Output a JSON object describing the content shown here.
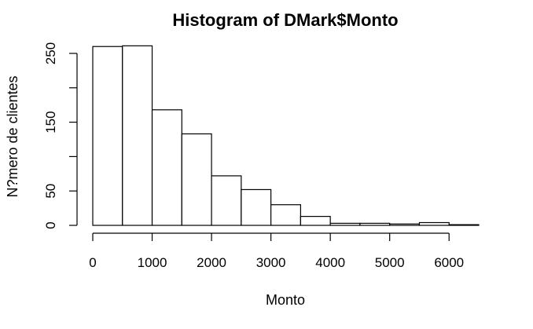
{
  "chart_data": {
    "type": "bar",
    "title": "Histogram of DMark$Monto",
    "xlabel": "Monto",
    "ylabel": "N?mero de clientes",
    "bins": [
      {
        "x0": 0,
        "x1": 500,
        "count": 260
      },
      {
        "x0": 500,
        "x1": 1000,
        "count": 261
      },
      {
        "x0": 1000,
        "x1": 1500,
        "count": 168
      },
      {
        "x0": 1500,
        "x1": 2000,
        "count": 133
      },
      {
        "x0": 2000,
        "x1": 2500,
        "count": 72
      },
      {
        "x0": 2500,
        "x1": 3000,
        "count": 52
      },
      {
        "x0": 3000,
        "x1": 3500,
        "count": 30
      },
      {
        "x0": 3500,
        "x1": 4000,
        "count": 13
      },
      {
        "x0": 4000,
        "x1": 4500,
        "count": 3
      },
      {
        "x0": 4500,
        "x1": 5000,
        "count": 3
      },
      {
        "x0": 5000,
        "x1": 5500,
        "count": 2
      },
      {
        "x0": 5500,
        "x1": 6000,
        "count": 4
      },
      {
        "x0": 6000,
        "x1": 6500,
        "count": 1
      }
    ],
    "xlim": [
      0,
      6500
    ],
    "ylim": [
      0,
      265
    ],
    "xticks": [
      0,
      1000,
      2000,
      3000,
      4000,
      5000,
      6000
    ],
    "xtick_labels": [
      "0",
      "1000",
      "2000",
      "3000",
      "4000",
      "5000",
      "6000"
    ],
    "yticks": [
      0,
      50,
      100,
      150,
      200,
      250
    ],
    "ytick_labels": [
      "0",
      "50",
      "",
      "150",
      "",
      "250"
    ],
    "grid": false,
    "legend": "none"
  }
}
